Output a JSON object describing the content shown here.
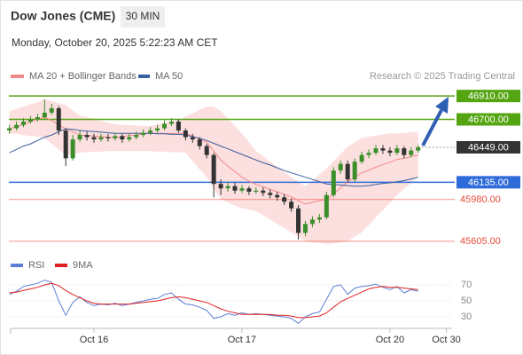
{
  "chart_data": {
    "type": "candlestick",
    "title": "Dow Jones (CME)",
    "interval": "30 MIN",
    "subtitle": "Monday, October 20, 2025 5:22:23 AM CET",
    "source": "Research © 2025 Trading Central",
    "up_color": "#3a8f2a",
    "down_color": "#333333",
    "ylim": [
      45500,
      47015
    ],
    "categories": [
      null,
      null,
      null,
      null,
      null,
      null,
      null,
      null,
      null,
      null,
      null,
      null,
      "Oct 16",
      null,
      null,
      null,
      null,
      null,
      null,
      null,
      null,
      null,
      null,
      null,
      null,
      null,
      null,
      null,
      null,
      null,
      null,
      null,
      null,
      "Oct 17",
      null,
      null,
      null,
      null,
      null,
      null,
      null,
      null,
      null,
      null,
      null,
      null,
      null,
      null,
      null,
      null,
      null,
      null,
      null,
      null,
      "Oct 20",
      null,
      null,
      null,
      null,
      null,
      null,
      null,
      "Oct 30"
    ],
    "open": [
      46600,
      46620,
      46650,
      46680,
      46700,
      46720,
      46760,
      46800,
      46600,
      46350,
      46520,
      46560,
      46540,
      46520,
      46540,
      46530,
      46550,
      46520,
      46540,
      46560,
      46580,
      46600,
      46620,
      46660,
      46680,
      46600,
      46540,
      46520,
      46460,
      46380,
      46120,
      46080,
      46100,
      46060,
      46080,
      46050,
      46060,
      46040,
      46020,
      46000,
      45960,
      45900,
      45680,
      45760,
      45800,
      45820,
      46020,
      46240,
      46300,
      46160,
      46320,
      46380,
      46400,
      46440,
      46420,
      46400,
      46440,
      46380,
      46420,
      null,
      null,
      null,
      null
    ],
    "high": [
      46650,
      46680,
      46710,
      46730,
      46750,
      46880,
      46840,
      46820,
      46620,
      46560,
      46600,
      46590,
      46570,
      46570,
      46570,
      46580,
      46570,
      46570,
      46590,
      46610,
      46630,
      46650,
      46690,
      46710,
      46700,
      46620,
      46570,
      46540,
      46480,
      46400,
      46160,
      46140,
      46130,
      46110,
      46100,
      46090,
      46090,
      46070,
      46050,
      46030,
      45990,
      45930,
      45790,
      45830,
      45850,
      46050,
      46270,
      46330,
      46330,
      46350,
      46410,
      46430,
      46470,
      46470,
      46450,
      46470,
      46460,
      46450,
      46470,
      null,
      null,
      null,
      null
    ],
    "low": [
      46570,
      46600,
      46630,
      46660,
      46680,
      46700,
      46740,
      46560,
      46280,
      46330,
      46500,
      46510,
      46490,
      46500,
      46500,
      46510,
      46490,
      46500,
      46520,
      46540,
      46560,
      46580,
      46600,
      46640,
      46580,
      46510,
      46490,
      46430,
      46350,
      46000,
      46020,
      46050,
      46030,
      46040,
      46020,
      46030,
      46010,
      45990,
      45970,
      45930,
      45870,
      45620,
      45650,
      45730,
      45770,
      45800,
      46000,
      46210,
      46130,
      46140,
      46300,
      46350,
      46380,
      46390,
      46370,
      46380,
      46350,
      46360,
      46400,
      null,
      null,
      null,
      null
    ],
    "close": [
      46620,
      46650,
      46680,
      46700,
      46720,
      46760,
      46800,
      46600,
      46350,
      46520,
      46560,
      46540,
      46520,
      46540,
      46530,
      46550,
      46520,
      46540,
      46560,
      46580,
      46600,
      46620,
      46660,
      46680,
      46600,
      46540,
      46520,
      46460,
      46380,
      46120,
      46080,
      46100,
      46060,
      46080,
      46050,
      46060,
      46040,
      46020,
      46000,
      45960,
      45900,
      45680,
      45760,
      45800,
      45820,
      46020,
      46240,
      46300,
      46160,
      46320,
      46380,
      46400,
      46440,
      46420,
      46400,
      46440,
      46380,
      46420,
      46449,
      null,
      null,
      null,
      null
    ],
    "ma20": {
      "name": "MA 20 + Bollinger Bands",
      "color": "#f08a8a",
      "band_color": "#fcd9d9",
      "values": [
        46615,
        46635,
        46655,
        46680,
        46700,
        46720,
        46690,
        46650,
        46615,
        46590,
        46560,
        46555,
        46550,
        46545,
        46540,
        46535,
        46545,
        46555,
        46560,
        46570,
        46575,
        46575,
        46575,
        46575,
        46575,
        46575,
        46550,
        46520,
        46495,
        46415,
        46335,
        46280,
        46230,
        46180,
        46145,
        46115,
        46095,
        46070,
        46050,
        46025,
        46005,
        45970,
        45940,
        45955,
        45970,
        45980,
        46030,
        46085,
        46140,
        46180,
        46220,
        46245,
        46270,
        46295,
        46315,
        46340,
        46350,
        46365,
        46380,
        null,
        null,
        null,
        null
      ],
      "band_upper": [
        46775,
        46795,
        46815,
        46835,
        46855,
        46880,
        46865,
        46845,
        46830,
        46780,
        46735,
        46720,
        46705,
        46685,
        46670,
        46655,
        46650,
        46650,
        46645,
        46640,
        46640,
        46655,
        46670,
        46680,
        46695,
        46725,
        46755,
        46785,
        46815,
        46815,
        46775,
        46710,
        46640,
        46575,
        46495,
        46415,
        46370,
        46320,
        46275,
        46225,
        46180,
        46140,
        46100,
        46150,
        46205,
        46260,
        46325,
        46390,
        46455,
        46495,
        46535,
        46545,
        46555,
        46565,
        46575,
        46575,
        46580,
        46585,
        46590,
        null,
        null,
        null,
        null
      ],
      "band_lower": [
        46575,
        46570,
        46560,
        46550,
        46545,
        46535,
        46480,
        46430,
        46375,
        46390,
        46400,
        46405,
        46410,
        46410,
        46415,
        46415,
        46415,
        46415,
        46415,
        46415,
        46415,
        46410,
        46410,
        46405,
        46405,
        46400,
        46325,
        46250,
        46180,
        46080,
        45980,
        45955,
        45925,
        45900,
        45890,
        45875,
        45840,
        45800,
        45760,
        45725,
        45685,
        45645,
        45605,
        45595,
        45590,
        45580,
        45585,
        45595,
        45605,
        45645,
        45685,
        45750,
        45820,
        45885,
        45950,
        46020,
        46075,
        46130,
        46180,
        null,
        null,
        null,
        null
      ]
    },
    "ma50": {
      "name": "MA 50",
      "color": "#3a5f9e",
      "values": [
        46400,
        46430,
        46460,
        46480,
        46510,
        46540,
        46560,
        46590,
        46615,
        46610,
        46600,
        46595,
        46590,
        46585,
        46580,
        46575,
        46575,
        46575,
        46575,
        46575,
        46575,
        46570,
        46570,
        46565,
        46565,
        46560,
        46545,
        46530,
        46510,
        46485,
        46460,
        46435,
        46410,
        46385,
        46360,
        46335,
        46310,
        46290,
        46265,
        46240,
        46220,
        46200,
        46180,
        46160,
        46140,
        46120,
        46115,
        46110,
        46105,
        46100,
        46100,
        46105,
        46115,
        46125,
        46130,
        46140,
        46150,
        46165,
        46180,
        null,
        null,
        null,
        null
      ]
    },
    "levels": [
      {
        "value": 46910,
        "label": "46910.00",
        "color": "#55a512",
        "style": "box"
      },
      {
        "value": 46700,
        "label": "46700.00",
        "color": "#55a512",
        "style": "box"
      },
      {
        "value": 46449,
        "label": "46449.00",
        "color": "#333333",
        "style": "box",
        "line_style": "dotted"
      },
      {
        "value": 46135,
        "label": "46135.00",
        "color": "#2f6bd8",
        "style": "box"
      },
      {
        "value": 45980,
        "label": "45980.00",
        "color": "#e84b3a",
        "style": "text"
      },
      {
        "value": 45605,
        "label": "45605.00",
        "color": "#e84b3a",
        "style": "text"
      }
    ],
    "rsi": {
      "ylim": [
        20,
        80
      ],
      "yticks": [
        30,
        50,
        70
      ],
      "series": [
        {
          "name": "RSI",
          "color": "#5b7fd6",
          "values": [
            58,
            62,
            68,
            70,
            72,
            76,
            73,
            50,
            32,
            48,
            55,
            48,
            44,
            46,
            45,
            47,
            44,
            46,
            48,
            50,
            52,
            53,
            58,
            60,
            52,
            46,
            45,
            42,
            38,
            28,
            30,
            34,
            32,
            35,
            33,
            34,
            33,
            32,
            31,
            30,
            28,
            22,
            30,
            34,
            36,
            52,
            68,
            70,
            58,
            66,
            68,
            69,
            71,
            67,
            64,
            68,
            60,
            64,
            62,
            null,
            null,
            null,
            null
          ]
        },
        {
          "name": "9MA",
          "color": "#e02020",
          "values": [
            60,
            61,
            63,
            65,
            67,
            70,
            72,
            69,
            63,
            58,
            54,
            50,
            47,
            46,
            46,
            46,
            46,
            46,
            47,
            48,
            49,
            50,
            52,
            54,
            55,
            54,
            52,
            50,
            48,
            44,
            40,
            37,
            35,
            33,
            33,
            33,
            33,
            33,
            32,
            32,
            31,
            29,
            29,
            30,
            31,
            35,
            42,
            49,
            53,
            57,
            61,
            65,
            67,
            68,
            67,
            67,
            66,
            65,
            64,
            null,
            null,
            null,
            null
          ]
        }
      ]
    }
  }
}
